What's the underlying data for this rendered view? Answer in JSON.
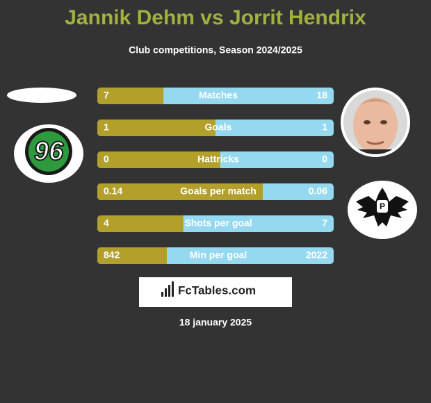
{
  "title": "Jannik Dehm vs Jorrit Hendrix",
  "subtitle": "Club competitions, Season 2024/2025",
  "left_color": "#b3a02a",
  "right_color": "#94d9f0",
  "rows": [
    {
      "label": "Matches",
      "left": 7,
      "right": 18
    },
    {
      "label": "Goals",
      "left": 1,
      "right": 1
    },
    {
      "label": "Hattricks",
      "left": 0,
      "right": 0
    },
    {
      "label": "Goals per match",
      "left": 0.14,
      "right": 0.06
    },
    {
      "label": "Shots per goal",
      "left": 4,
      "right": 7
    },
    {
      "label": "Min per goal",
      "left": 842,
      "right": 2022
    }
  ],
  "brand": "FcTables.com",
  "date": "18 january 2025"
}
